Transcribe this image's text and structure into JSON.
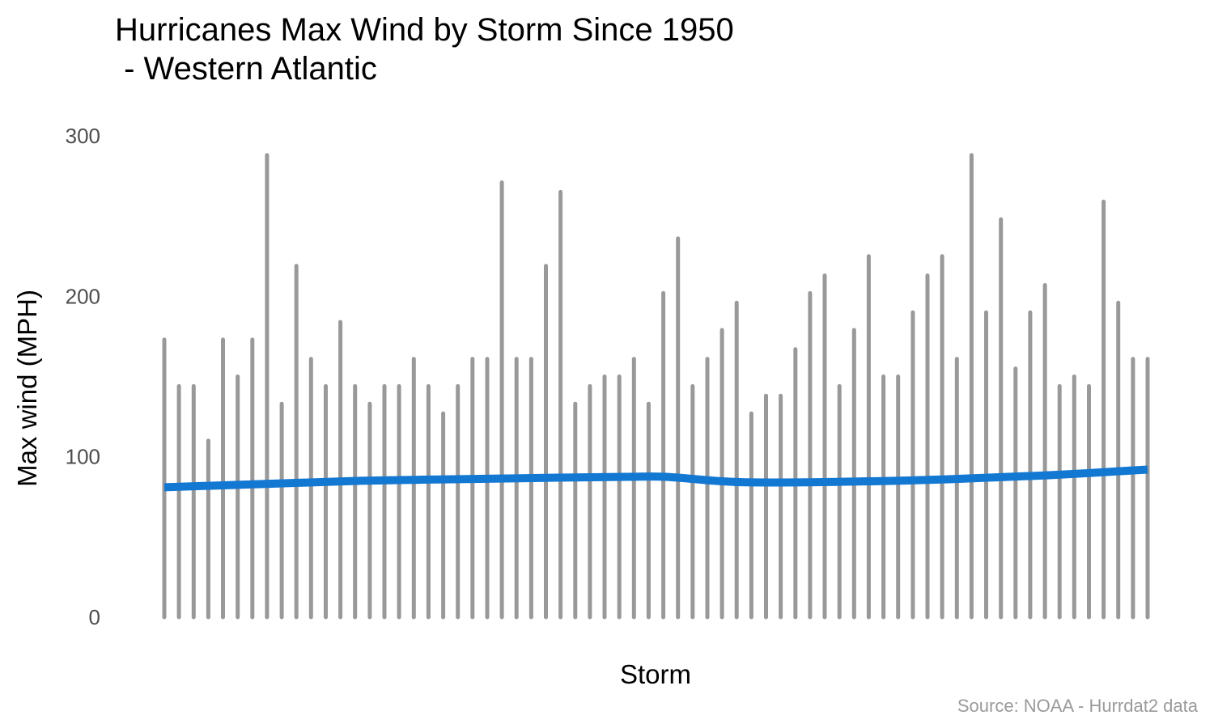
{
  "chart_data": {
    "type": "bar",
    "title_lines": [
      "Hurricanes Max Wind by Storm Since 1950",
      " - Western Atlantic"
    ],
    "xlabel": "Storm",
    "ylabel": "Max wind (MPH)",
    "caption": "Source: NOAA - Hurrdat2 data",
    "ylim": [
      0,
      300
    ],
    "yticks": [
      0,
      100,
      200,
      300
    ],
    "ytick_labels": [
      "0",
      "100",
      "200",
      "300"
    ],
    "grid": false,
    "legend": "none",
    "bar_color": "#999999",
    "trend_color": "#1378d2",
    "series": [
      {
        "type": "bar",
        "values": [
          173,
          144,
          144,
          110,
          173,
          150,
          173,
          288,
          133,
          219,
          161,
          144,
          184,
          144,
          133,
          144,
          144,
          161,
          144,
          127,
          144,
          161,
          161,
          271,
          161,
          161,
          219,
          265,
          133,
          144,
          150,
          150,
          161,
          133,
          202,
          236,
          144,
          161,
          179,
          196,
          127,
          138,
          138,
          167,
          202,
          213,
          144,
          179,
          225,
          150,
          150,
          190,
          213,
          225,
          161,
          288,
          190,
          248,
          155,
          190,
          207,
          144,
          150,
          144,
          259,
          196,
          161,
          161
        ]
      },
      {
        "type": "line",
        "name": "trend",
        "x": [
          0,
          0.1,
          0.2,
          0.3,
          0.4,
          0.47,
          0.51,
          0.56,
          0.6,
          0.7,
          0.8,
          0.9,
          1
        ],
        "values": [
          81,
          83,
          85,
          86,
          87,
          87.5,
          87.5,
          85,
          84,
          84.5,
          86,
          88.5,
          92
        ]
      }
    ]
  }
}
